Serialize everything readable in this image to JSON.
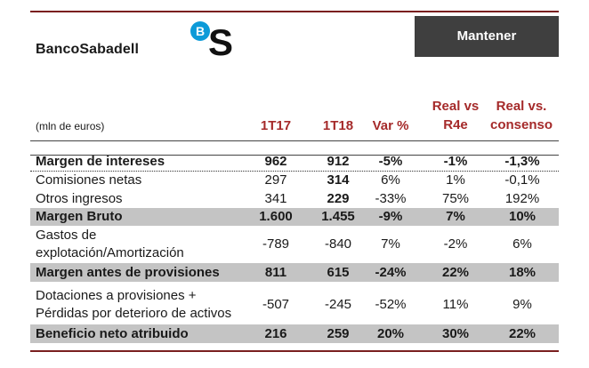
{
  "header": {
    "brand": "BancoSabadell",
    "logo_b": "B",
    "logo_s": "S",
    "rating": "Mantener"
  },
  "table": {
    "units": "(mln de euros)",
    "columns": [
      "1T17",
      "1T18",
      "Var %",
      "Real vs R4e",
      "Real vs. consenso"
    ],
    "col_lines": {
      "c1": "1T17",
      "c2": "1T18",
      "c3": "Var %",
      "c4_a": "Real vs",
      "c4_b": "R4e",
      "c5_a": "Real vs.",
      "c5_b": "consenso"
    },
    "rows": [
      {
        "label": "Margen de intereses",
        "v1": "962",
        "v2": "912",
        "v3": "-5%",
        "v4": "-1%",
        "v5": "-1,3%"
      },
      {
        "label": "Comisiones netas",
        "v1": "297",
        "v2": "314",
        "v3": "6%",
        "v4": "1%",
        "v5": "-0,1%"
      },
      {
        "label": "Otros ingresos",
        "v1": "341",
        "v2": "229",
        "v3": "-33%",
        "v4": "75%",
        "v5": "192%"
      },
      {
        "label": "Margen Bruto",
        "v1": "1.600",
        "v2": "1.455",
        "v3": "-9%",
        "v4": "7%",
        "v5": "10%"
      },
      {
        "label_a": "Gastos de",
        "label_b": "explotación/Amortización",
        "v1": "-789",
        "v2": "-840",
        "v3": "7%",
        "v4": "-2%",
        "v5": "6%"
      },
      {
        "label": "Margen antes de provisiones",
        "v1": "811",
        "v2": "615",
        "v3": "-24%",
        "v4": "22%",
        "v5": "18%"
      },
      {
        "label_a": "Dotaciones a provisiones +",
        "label_b": "Pérdidas por deterioro de activos",
        "v1": "-507",
        "v2": "-245",
        "v3": "-52%",
        "v4": "11%",
        "v5": "9%"
      },
      {
        "label": "Beneficio neto atribuido",
        "v1": "216",
        "v2": "259",
        "v3": "20%",
        "v4": "30%",
        "v5": "22%"
      }
    ]
  }
}
